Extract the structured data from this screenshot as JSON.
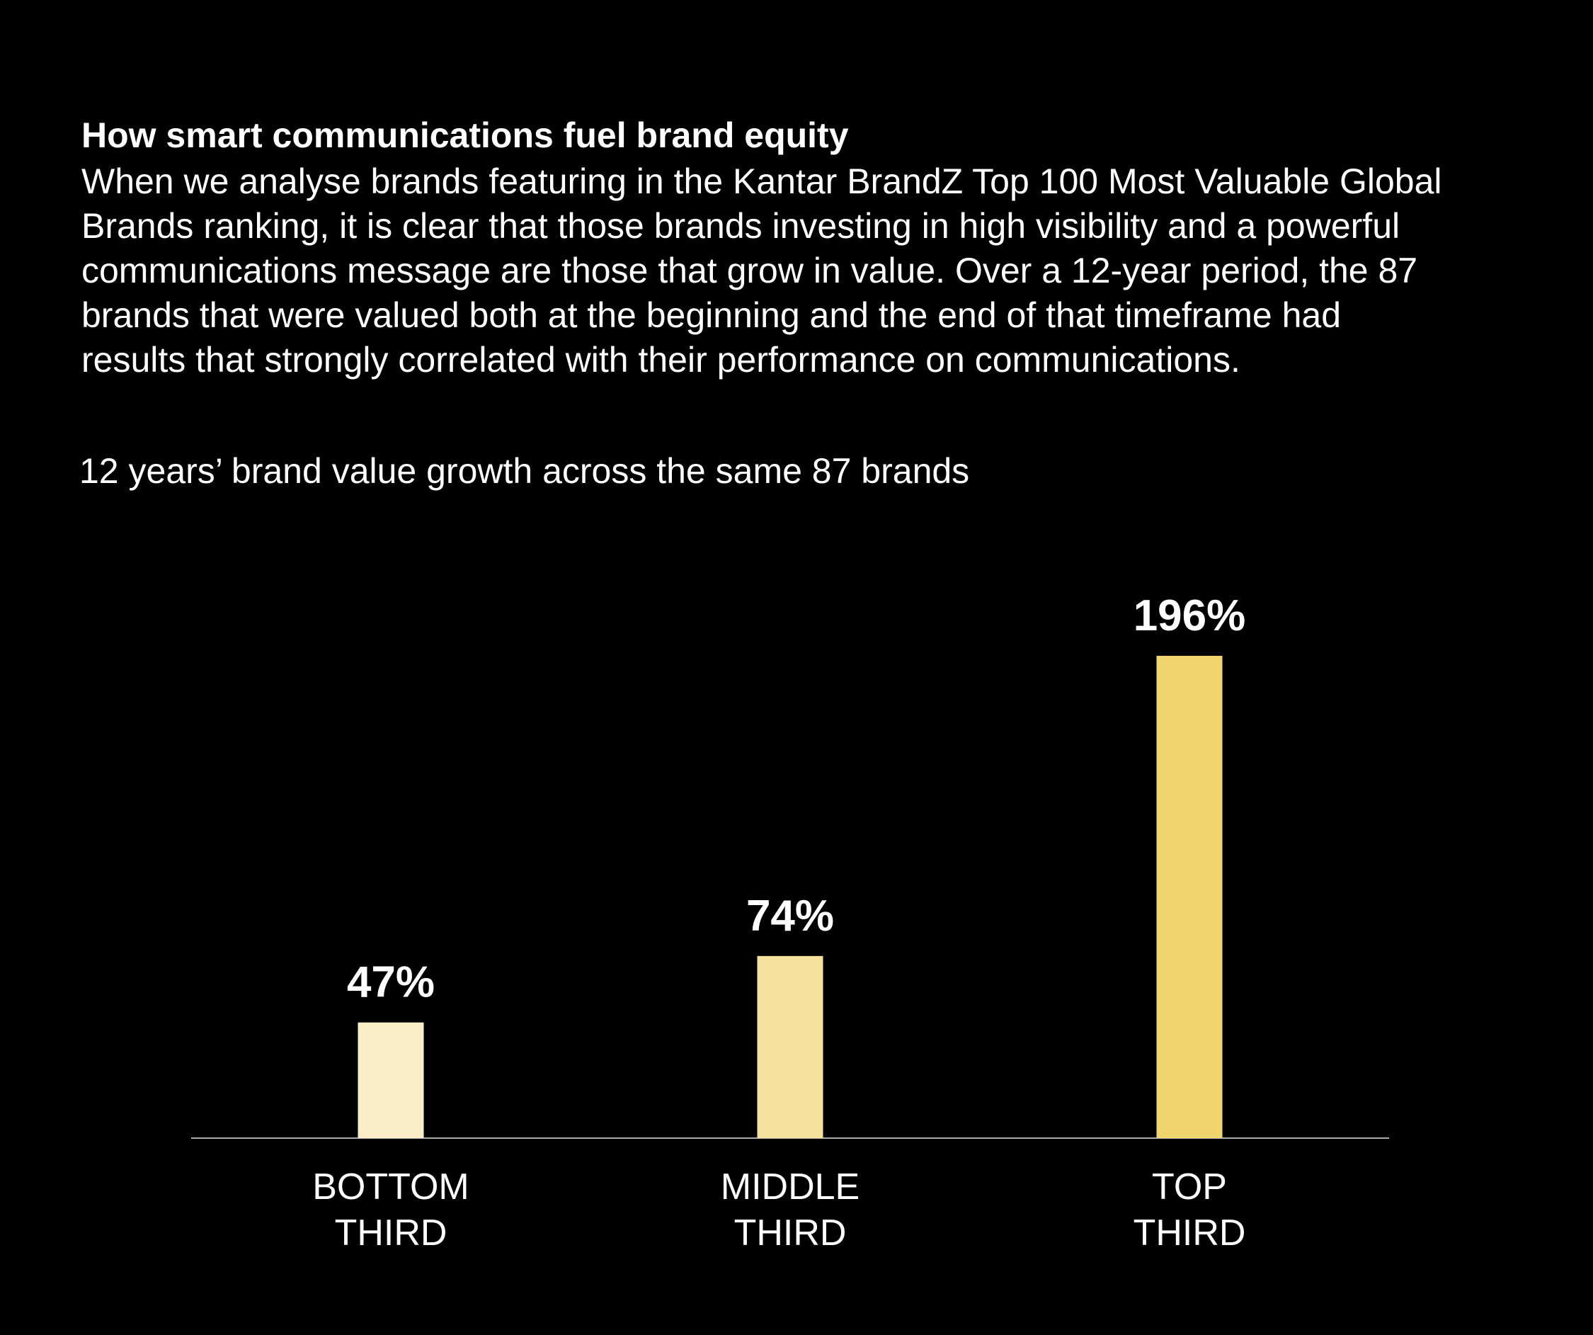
{
  "header": {
    "title": "How smart communications fuel brand equity",
    "body": [
      "When we analyse brands featuring in the Kantar BrandZ Top 100 Most Valuable Global",
      "Brands ranking, it is clear that those brands investing in high visibility and a powerful",
      "communications message are those that grow in value. Over a 12-year period, the 87",
      "brands that were valued both at the beginning and the end of that timeframe had",
      "results that strongly correlated with their performance on communications."
    ]
  },
  "chart_data": {
    "type": "bar",
    "title": "12 years’ brand value growth across the same 87 brands",
    "categories": [
      [
        "BOTTOM",
        "THIRD"
      ],
      [
        "MIDDLE",
        "THIRD"
      ],
      [
        "TOP",
        "THIRD"
      ]
    ],
    "values": [
      47,
      74,
      196
    ],
    "value_labels": [
      "47%",
      "74%",
      "196%"
    ],
    "colors": [
      "#faeec9",
      "#f5e29e",
      "#f0d56f"
    ]
  }
}
